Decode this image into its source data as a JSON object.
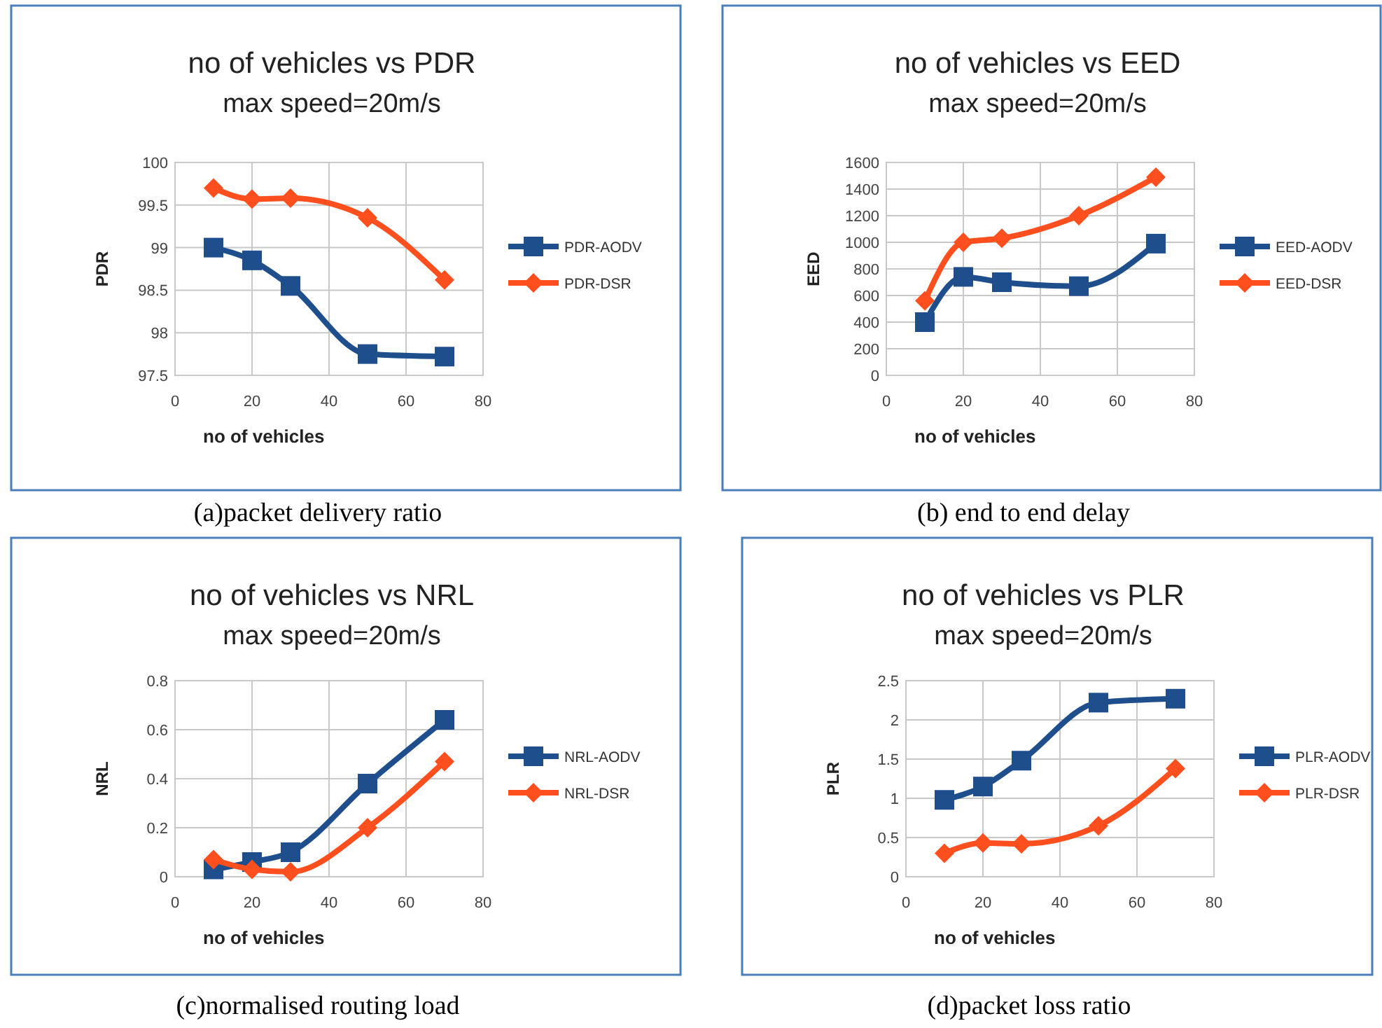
{
  "chart_data": [
    {
      "type": "line",
      "title": "no of vehicles vs PDR",
      "subtitle": "max speed=20m/s",
      "xlabel": "no of vehicles",
      "ylabel": "PDR",
      "annotations": [
        "(a)packet delivery ratio"
      ],
      "x": [
        10,
        20,
        30,
        50,
        70
      ],
      "xlim": [
        0,
        80
      ],
      "xticks": [
        0,
        20,
        40,
        60,
        80
      ],
      "ylim": [
        97.5,
        100
      ],
      "yticks": [
        97.5,
        98,
        98.5,
        99,
        99.5,
        100
      ],
      "grid": true,
      "legend": "right",
      "line_style": "solid",
      "series": [
        {
          "name": "PDR-AODV",
          "color": "#1f4e8c",
          "marker": "square",
          "values": [
            99.0,
            98.85,
            98.55,
            97.75,
            97.72
          ]
        },
        {
          "name": "PDR-DSR",
          "color": "#ff4f1f",
          "marker": "diamond",
          "values": [
            99.7,
            99.57,
            99.58,
            99.35,
            98.62
          ]
        }
      ]
    },
    {
      "type": "line",
      "title": "no of vehicles vs EED",
      "subtitle": "max speed=20m/s",
      "xlabel": "no of vehicles",
      "ylabel": "EED",
      "annotations": [
        "(b) end to end delay"
      ],
      "x": [
        10,
        20,
        30,
        50,
        70
      ],
      "xlim": [
        0,
        80
      ],
      "xticks": [
        0,
        20,
        40,
        60,
        80
      ],
      "ylim": [
        0,
        1600
      ],
      "yticks": [
        0,
        200,
        400,
        600,
        800,
        1000,
        1200,
        1400,
        1600
      ],
      "grid": true,
      "legend": "right",
      "line_style": "solid",
      "series": [
        {
          "name": "EED-AODV",
          "color": "#1f4e8c",
          "marker": "square",
          "values": [
            400,
            740,
            700,
            670,
            990
          ]
        },
        {
          "name": "EED-DSR",
          "color": "#ff4f1f",
          "marker": "diamond",
          "values": [
            560,
            1000,
            1030,
            1200,
            1490
          ]
        }
      ]
    },
    {
      "type": "line",
      "title": "no of vehicles vs NRL",
      "subtitle": "max speed=20m/s",
      "xlabel": "no of vehicles",
      "ylabel": "NRL",
      "annotations": [
        "(c)normalised routing load"
      ],
      "x": [
        10,
        20,
        30,
        50,
        70
      ],
      "xlim": [
        0,
        80
      ],
      "xticks": [
        0,
        20,
        40,
        60,
        80
      ],
      "ylim": [
        0,
        0.8
      ],
      "yticks": [
        0,
        0.2,
        0.4,
        0.6,
        0.8
      ],
      "grid": true,
      "legend": "right",
      "line_style": "solid",
      "series": [
        {
          "name": "NRL-AODV",
          "color": "#1f4e8c",
          "marker": "square",
          "values": [
            0.03,
            0.06,
            0.1,
            0.38,
            0.64
          ]
        },
        {
          "name": "NRL-DSR",
          "color": "#ff4f1f",
          "marker": "diamond",
          "values": [
            0.07,
            0.03,
            0.02,
            0.2,
            0.47
          ]
        }
      ]
    },
    {
      "type": "line",
      "title": "no of vehicles vs PLR",
      "subtitle": "max speed=20m/s",
      "xlabel": "no of vehicles",
      "ylabel": "PLR",
      "annotations": [
        "(d)packet loss ratio"
      ],
      "x": [
        10,
        20,
        30,
        50,
        70
      ],
      "xlim": [
        0,
        80
      ],
      "xticks": [
        0,
        20,
        40,
        60,
        80
      ],
      "ylim": [
        0,
        2.5
      ],
      "yticks": [
        0,
        0.5,
        1,
        1.5,
        2,
        2.5
      ],
      "grid": true,
      "legend": "right",
      "line_style": "solid",
      "series": [
        {
          "name": "PLR-AODV",
          "color": "#1f4e8c",
          "marker": "square",
          "values": [
            0.98,
            1.15,
            1.48,
            2.22,
            2.27
          ]
        },
        {
          "name": "PLR-DSR",
          "color": "#ff4f1f",
          "marker": "diamond",
          "values": [
            0.3,
            0.43,
            0.42,
            0.65,
            1.38
          ]
        }
      ]
    }
  ]
}
